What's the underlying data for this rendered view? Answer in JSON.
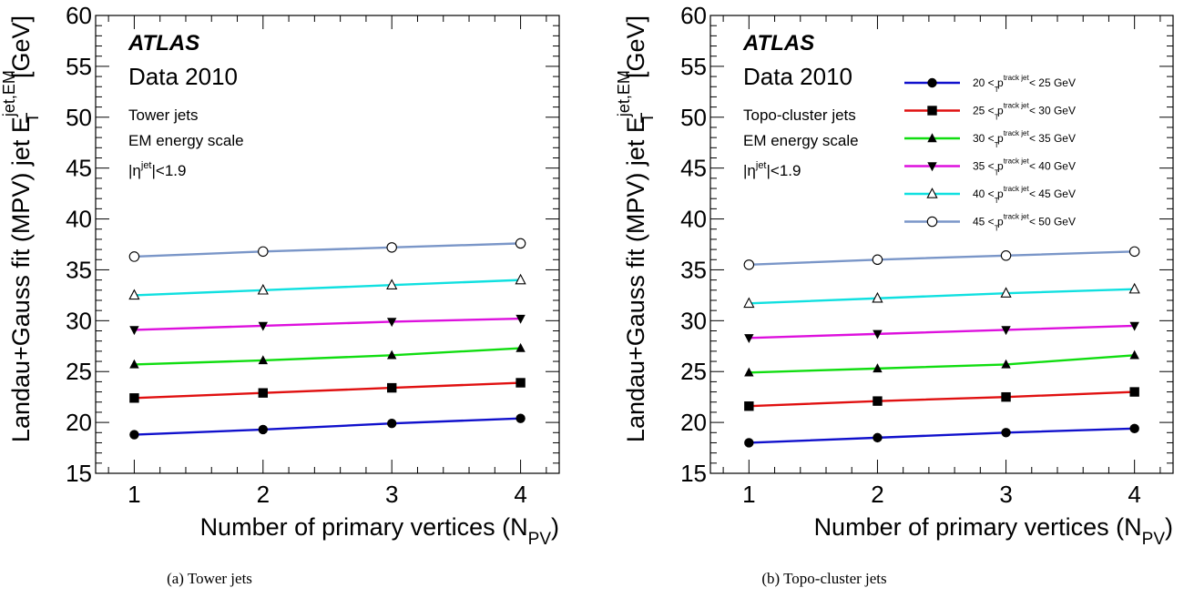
{
  "chart_data": [
    {
      "type": "line",
      "panel_label": "(a)",
      "caption": "(a) Tower jets",
      "atlas_label": "ATLAS",
      "data_label": "Data 2010",
      "info_lines": [
        "Tower jets",
        "EM energy scale"
      ],
      "eta_cut": {
        "pre": "|η",
        "sup": "jet",
        "post": "|<1.9"
      },
      "xlabel": {
        "main": "Number of primary vertices (N",
        "sub": "PV",
        "post": ")"
      },
      "ylabel": {
        "main": "Landau+Gauss fit (MPV) jet E",
        "sup": "jet,EM",
        "sub": "T",
        "post": " [GeV]"
      },
      "xlim": [
        0.7,
        4.3
      ],
      "ylim": [
        15,
        60
      ],
      "x_ticks": [
        1,
        2,
        3,
        4
      ],
      "y_ticks": [
        15,
        20,
        25,
        30,
        35,
        40,
        45,
        50,
        55,
        60
      ],
      "x": [
        1,
        2,
        3,
        4
      ],
      "series": [
        {
          "color": "#1010cc",
          "marker": "circle-filled",
          "values": [
            18.8,
            19.3,
            19.9,
            20.4
          ]
        },
        {
          "color": "#e01010",
          "marker": "square-filled",
          "values": [
            22.4,
            22.9,
            23.4,
            23.9
          ]
        },
        {
          "color": "#10dd10",
          "marker": "triangle-up-filled",
          "values": [
            25.7,
            26.1,
            26.6,
            27.3
          ]
        },
        {
          "color": "#dd10dd",
          "marker": "triangle-down-filled",
          "values": [
            29.1,
            29.5,
            29.9,
            30.2
          ]
        },
        {
          "color": "#10e0e0",
          "marker": "triangle-up-open",
          "values": [
            32.5,
            33.0,
            33.5,
            34.0
          ]
        },
        {
          "color": "#7a96c8",
          "marker": "circle-open",
          "values": [
            36.3,
            36.8,
            37.2,
            37.6
          ]
        }
      ]
    },
    {
      "type": "line",
      "panel_label": "(b)",
      "caption": "(b) Topo-cluster jets",
      "atlas_label": "ATLAS",
      "data_label": "Data 2010",
      "info_lines": [
        "Topo-cluster jets",
        "EM energy scale"
      ],
      "eta_cut": {
        "pre": "|η",
        "sup": "jet",
        "post": "|<1.9"
      },
      "xlabel": {
        "main": "Number of primary vertices (N",
        "sub": "PV",
        "post": ")"
      },
      "ylabel": {
        "main": "Landau+Gauss fit (MPV) jet E",
        "sup": "jet,EM",
        "sub": "T",
        "post": " [GeV]"
      },
      "xlim": [
        0.7,
        4.3
      ],
      "ylim": [
        15,
        60
      ],
      "x_ticks": [
        1,
        2,
        3,
        4
      ],
      "y_ticks": [
        15,
        20,
        25,
        30,
        35,
        40,
        45,
        50,
        55,
        60
      ],
      "legend_position": "top-right",
      "x": [
        1,
        2,
        3,
        4
      ],
      "series": [
        {
          "legend": {
            "pre": "20 < p",
            "sup": "track jet",
            "sub": "T",
            "post": " < 25 GeV"
          },
          "color": "#1010cc",
          "marker": "circle-filled",
          "values": [
            18.0,
            18.5,
            19.0,
            19.4
          ]
        },
        {
          "legend": {
            "pre": "25 < p",
            "sup": "track jet",
            "sub": "T",
            "post": " < 30 GeV"
          },
          "color": "#e01010",
          "marker": "square-filled",
          "values": [
            21.6,
            22.1,
            22.5,
            23.0
          ]
        },
        {
          "legend": {
            "pre": "30 < p",
            "sup": "track jet",
            "sub": "T",
            "post": " < 35 GeV"
          },
          "color": "#10dd10",
          "marker": "triangle-up-filled",
          "values": [
            24.9,
            25.3,
            25.7,
            26.6
          ]
        },
        {
          "legend": {
            "pre": "35 < p",
            "sup": "track jet",
            "sub": "T",
            "post": " < 40 GeV"
          },
          "color": "#dd10dd",
          "marker": "triangle-down-filled",
          "values": [
            28.3,
            28.7,
            29.1,
            29.5
          ]
        },
        {
          "legend": {
            "pre": "40 < p",
            "sup": "track jet",
            "sub": "T",
            "post": " < 45 GeV"
          },
          "color": "#10e0e0",
          "marker": "triangle-up-open",
          "values": [
            31.7,
            32.2,
            32.7,
            33.1
          ]
        },
        {
          "legend": {
            "pre": "45 < p",
            "sup": "track jet",
            "sub": "T",
            "post": " < 50 GeV"
          },
          "color": "#7a96c8",
          "marker": "circle-open",
          "values": [
            35.5,
            36.0,
            36.4,
            36.8
          ]
        }
      ]
    }
  ]
}
